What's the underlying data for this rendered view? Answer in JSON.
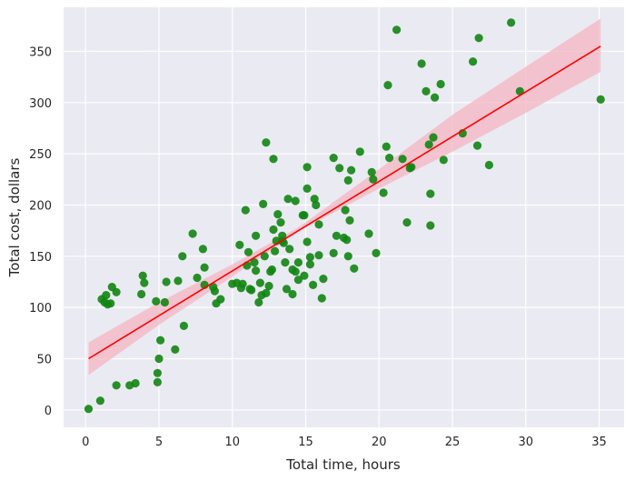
{
  "chart_data": {
    "type": "scatter",
    "title": "",
    "xlabel": "Total time, hours",
    "ylabel": "Total cost, dollars",
    "xlim": [
      -1.5,
      36.7
    ],
    "ylim": [
      -17,
      393
    ],
    "xticks": [
      0,
      5,
      10,
      15,
      20,
      25,
      30,
      35
    ],
    "yticks": [
      0,
      50,
      100,
      150,
      200,
      250,
      300,
      350
    ],
    "grid": true,
    "background": "#eaeaf2",
    "point_color": "#128512",
    "line_color": "#ff0000",
    "band_color": "#f4b6c2",
    "regression": {
      "x": [
        0.2,
        35.1
      ],
      "y": [
        50,
        355
      ]
    },
    "confidence_band": {
      "x": [
        0.2,
        5,
        10,
        14.6,
        20,
        25,
        30,
        35.1
      ],
      "lower": [
        34,
        83,
        130,
        175,
        216,
        252,
        290,
        330
      ],
      "upper": [
        66,
        105,
        142,
        179,
        235,
        288,
        335,
        382
      ]
    },
    "points": [
      [
        0.2,
        1
      ],
      [
        1.0,
        9
      ],
      [
        1.1,
        108
      ],
      [
        1.3,
        105
      ],
      [
        1.4,
        112
      ],
      [
        1.5,
        103
      ],
      [
        1.7,
        104
      ],
      [
        1.8,
        120
      ],
      [
        2.1,
        115
      ],
      [
        2.1,
        24
      ],
      [
        3.0,
        24
      ],
      [
        3.4,
        26
      ],
      [
        3.8,
        113
      ],
      [
        3.9,
        131
      ],
      [
        4.0,
        124
      ],
      [
        4.8,
        106
      ],
      [
        4.9,
        36
      ],
      [
        4.9,
        27
      ],
      [
        5.0,
        50
      ],
      [
        5.1,
        68
      ],
      [
        5.4,
        105
      ],
      [
        5.5,
        125
      ],
      [
        6.1,
        59
      ],
      [
        6.3,
        126
      ],
      [
        6.6,
        150
      ],
      [
        6.7,
        82
      ],
      [
        7.3,
        172
      ],
      [
        7.6,
        129
      ],
      [
        8.0,
        157
      ],
      [
        8.1,
        139
      ],
      [
        8.1,
        122
      ],
      [
        8.7,
        120
      ],
      [
        8.8,
        116
      ],
      [
        8.9,
        104
      ],
      [
        9.2,
        108
      ],
      [
        10.0,
        123
      ],
      [
        10.3,
        124
      ],
      [
        10.5,
        161
      ],
      [
        10.6,
        119
      ],
      [
        10.7,
        123
      ],
      [
        10.9,
        195
      ],
      [
        11.0,
        141
      ],
      [
        11.1,
        154
      ],
      [
        11.2,
        118
      ],
      [
        11.3,
        117
      ],
      [
        11.5,
        144
      ],
      [
        11.6,
        170
      ],
      [
        11.6,
        136
      ],
      [
        11.8,
        105
      ],
      [
        11.9,
        124
      ],
      [
        12.0,
        112
      ],
      [
        12.1,
        201
      ],
      [
        12.2,
        150
      ],
      [
        12.3,
        261
      ],
      [
        12.3,
        114
      ],
      [
        12.5,
        121
      ],
      [
        12.6,
        135
      ],
      [
        12.7,
        137
      ],
      [
        12.8,
        245
      ],
      [
        12.8,
        176
      ],
      [
        12.9,
        155
      ],
      [
        13.0,
        165
      ],
      [
        13.1,
        191
      ],
      [
        13.3,
        183
      ],
      [
        13.4,
        165
      ],
      [
        13.4,
        170
      ],
      [
        13.5,
        163
      ],
      [
        13.6,
        144
      ],
      [
        13.7,
        118
      ],
      [
        13.8,
        206
      ],
      [
        13.9,
        157
      ],
      [
        14.1,
        137
      ],
      [
        14.1,
        113
      ],
      [
        14.3,
        204
      ],
      [
        14.3,
        135
      ],
      [
        14.5,
        144
      ],
      [
        14.5,
        127
      ],
      [
        14.8,
        190
      ],
      [
        14.9,
        131
      ],
      [
        14.9,
        190
      ],
      [
        15.1,
        216
      ],
      [
        15.1,
        237
      ],
      [
        15.1,
        164
      ],
      [
        15.3,
        149
      ],
      [
        15.3,
        142
      ],
      [
        15.5,
        122
      ],
      [
        15.6,
        206
      ],
      [
        15.7,
        200
      ],
      [
        15.9,
        151
      ],
      [
        15.9,
        181
      ],
      [
        16.1,
        109
      ],
      [
        16.2,
        128
      ],
      [
        16.9,
        246
      ],
      [
        16.9,
        153
      ],
      [
        17.1,
        170
      ],
      [
        17.3,
        236
      ],
      [
        17.6,
        168
      ],
      [
        17.7,
        195
      ],
      [
        17.8,
        166
      ],
      [
        17.9,
        224
      ],
      [
        17.9,
        150
      ],
      [
        18.0,
        185
      ],
      [
        18.1,
        234
      ],
      [
        18.3,
        138
      ],
      [
        18.7,
        252
      ],
      [
        19.3,
        172
      ],
      [
        19.5,
        232
      ],
      [
        19.6,
        225
      ],
      [
        19.8,
        153
      ],
      [
        20.3,
        212
      ],
      [
        20.5,
        257
      ],
      [
        20.6,
        317
      ],
      [
        20.7,
        246
      ],
      [
        21.2,
        371
      ],
      [
        21.6,
        245
      ],
      [
        21.9,
        183
      ],
      [
        22.1,
        236
      ],
      [
        22.2,
        237
      ],
      [
        22.9,
        338
      ],
      [
        23.2,
        311
      ],
      [
        23.4,
        259
      ],
      [
        23.5,
        180
      ],
      [
        23.5,
        211
      ],
      [
        23.7,
        266
      ],
      [
        23.8,
        305
      ],
      [
        24.2,
        318
      ],
      [
        24.4,
        244
      ],
      [
        25.7,
        270
      ],
      [
        26.4,
        340
      ],
      [
        26.7,
        258
      ],
      [
        26.8,
        363
      ],
      [
        27.5,
        239
      ],
      [
        29.0,
        378
      ],
      [
        29.6,
        311
      ],
      [
        35.1,
        303
      ]
    ]
  }
}
